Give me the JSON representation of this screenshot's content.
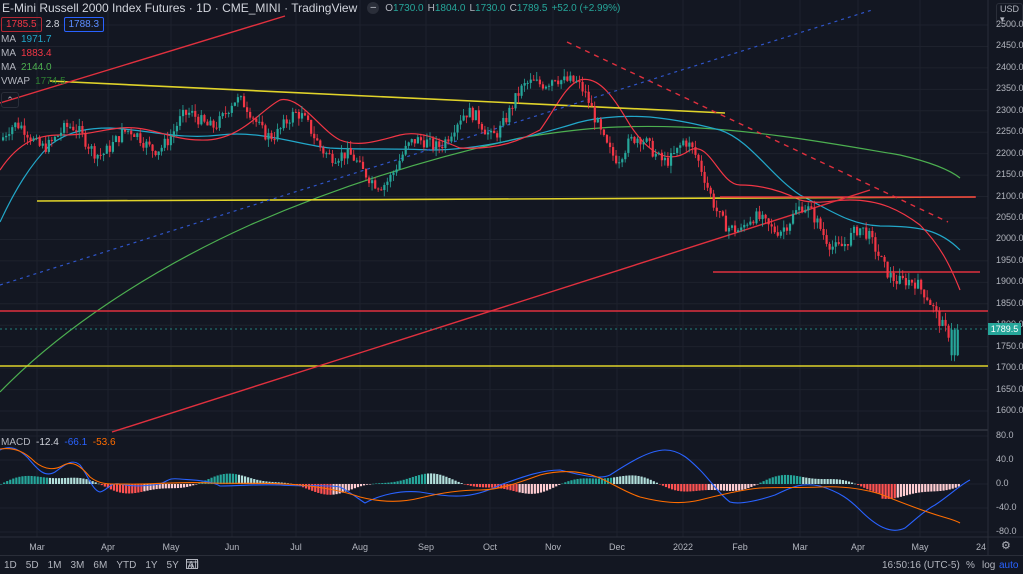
{
  "header": {
    "symbol_title": "E-Mini Russell 2000 Index Futures · 1D · CME_MINI · TradingView",
    "collapse_glyph": "–",
    "ohlc": {
      "o_label": "O",
      "o": "1730.0",
      "h_label": "H",
      "h": "1804.0",
      "l_label": "L",
      "l": "1730.0",
      "c_label": "C",
      "c": "1789.5",
      "change": "+52.0 (+2.99%)"
    },
    "quote": {
      "bid": "1785.5",
      "spread": "2.8",
      "ask": "1788.3"
    }
  },
  "indicators": [
    {
      "name": "MA",
      "value": "1971.7",
      "color": "#22a7c9"
    },
    {
      "name": "MA",
      "value": "1883.4",
      "color": "#f23645"
    },
    {
      "name": "MA",
      "value": "2144.0",
      "color": "#4caf50"
    },
    {
      "name": "VWAP",
      "value": "1774.5",
      "color": "#2e7d32"
    }
  ],
  "macd": {
    "label": "MACD",
    "hist": "-12.4",
    "macd": "-66.1",
    "signal": "-53.6",
    "hist_color": "#d1d4dc",
    "macd_color": "#2962ff",
    "signal_color": "#ff6d00"
  },
  "price_axis": {
    "currency": "USD ▾",
    "ticks": [
      "2500.0",
      "2450.0",
      "2400.0",
      "2350.0",
      "2300.0",
      "2250.0",
      "2200.0",
      "2150.0",
      "2100.0",
      "2050.0",
      "2000.0",
      "1950.0",
      "1900.0",
      "1850.0",
      "1800.0",
      "1750.0",
      "1700.0",
      "1650.0",
      "1600.0"
    ],
    "last_price": "1789.5"
  },
  "macd_axis": {
    "ticks": [
      "80.0",
      "40.0",
      "0.0",
      "-40.0",
      "-80.0"
    ]
  },
  "time_axis": {
    "labels": [
      "Mar",
      "Apr",
      "May",
      "Jun",
      "Jul",
      "Aug",
      "Sep",
      "Oct",
      "Nov",
      "Dec",
      "2022",
      "Feb",
      "Mar",
      "Apr",
      "May",
      "24"
    ]
  },
  "bottom_bar": {
    "ranges": [
      "1D",
      "5D",
      "1M",
      "3M",
      "6M",
      "YTD",
      "1Y",
      "5Y",
      "All"
    ],
    "date_range_icon": "calendar-goto-icon",
    "clock": "16:50:16 (UTC-5)",
    "percent": "%",
    "log": "log",
    "auto": "auto"
  },
  "colors": {
    "background": "#131722",
    "grid": "#1e222d",
    "up": "#26a69a",
    "down": "#f23645",
    "ma_fast": "#f23645",
    "ma_mid": "#22a7c9",
    "ma_slow": "#4caf50",
    "trend_yellow": "#e0d32a",
    "trend_red": "#e0303e",
    "trend_blue": "#2f55c9"
  },
  "chart_data": {
    "type": "candlestick",
    "title": "E-Mini Russell 2000 Index Futures · 1D · CME_MINI",
    "ylim": [
      1560,
      2540
    ],
    "last": {
      "open": 1730.0,
      "high": 1804.0,
      "low": 1730.0,
      "close": 1789.5
    },
    "horizontal_levels": [
      {
        "price": 2100,
        "color": "#e0303e"
      },
      {
        "price": 1920,
        "color": "#e0303e"
      },
      {
        "price": 1840,
        "color": "#e0303e"
      },
      {
        "price": 1705,
        "color": "#e0d32a"
      },
      {
        "price": 2090,
        "color": "#e0d32a",
        "span": "Mar–Nov 2021"
      }
    ],
    "approx_closes_monthly": {
      "x": [
        "Mar",
        "Apr",
        "May",
        "Jun",
        "Jul",
        "Aug",
        "Sep",
        "Oct",
        "Nov",
        "Dec",
        "2022",
        "Feb",
        "Mar",
        "Apr",
        "May",
        "May-end"
      ],
      "y": [
        2220,
        2250,
        2220,
        2320,
        2260,
        2140,
        2240,
        2250,
        2430,
        2180,
        2240,
        1990,
        2060,
        2010,
        1840,
        1789.5
      ]
    },
    "ma_values": {
      "MA_cyan": 1971.7,
      "MA_red": 1883.4,
      "MA_green": 2144.0,
      "VWAP": 1774.5
    },
    "macd": {
      "ylim": [
        -80,
        80
      ],
      "hist": -12.4,
      "macd": -66.1,
      "signal": -53.6
    }
  }
}
